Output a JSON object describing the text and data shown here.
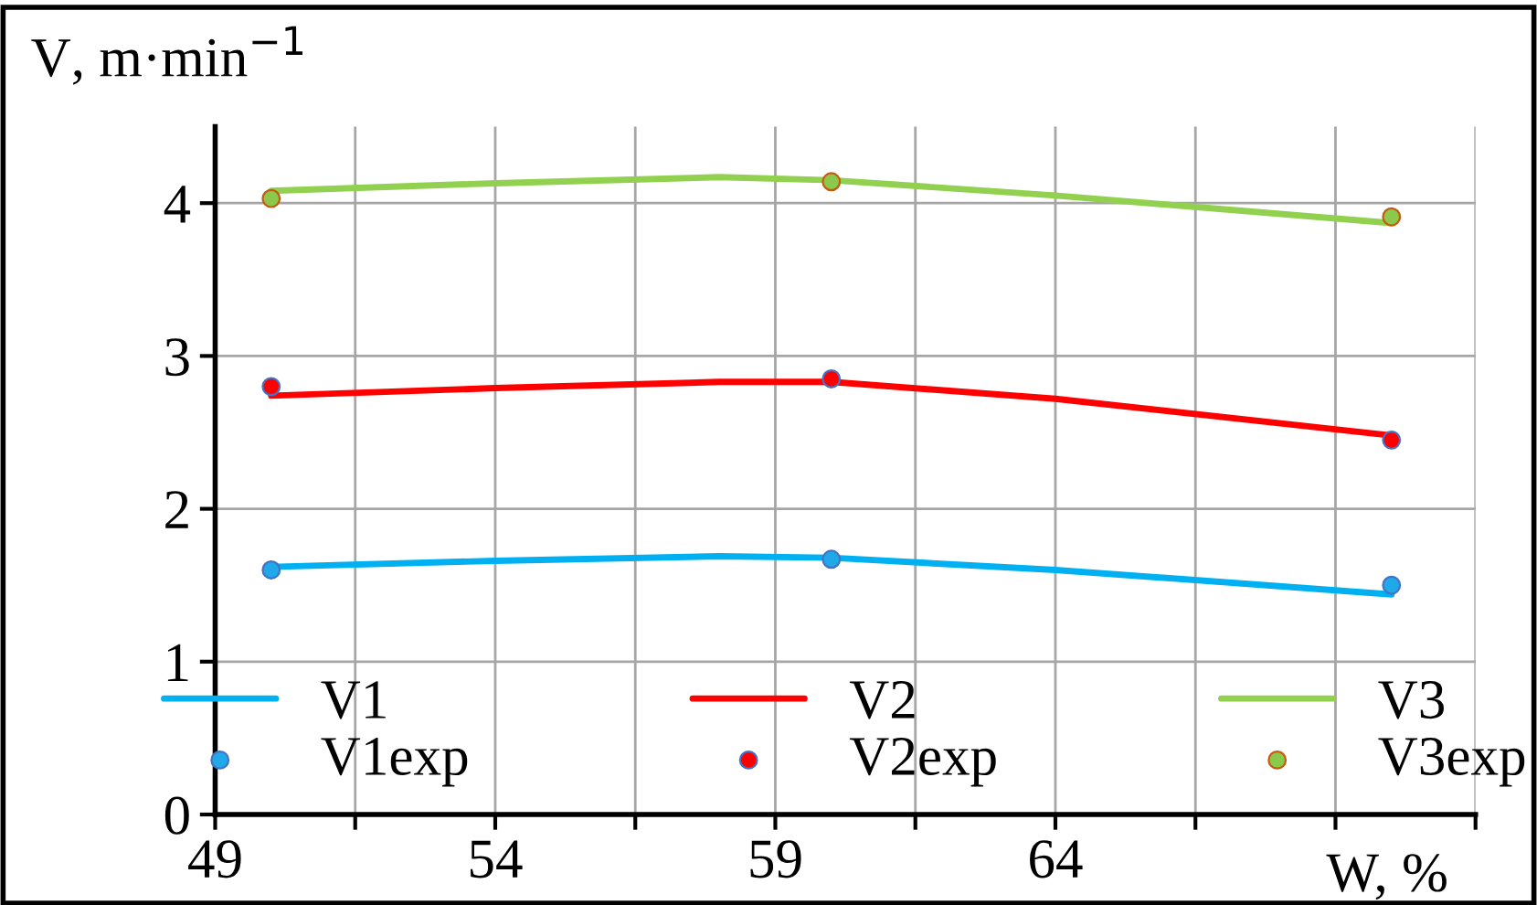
{
  "chart_data": {
    "type": "line",
    "xlabel": "W, %",
    "ylabel": "V, m·min$^{−1}$",
    "xlim": [
      49,
      71.5
    ],
    "ylim": [
      0,
      4.5
    ],
    "xticks": [
      49,
      {
        "value": 51.5,
        "label": null
      },
      54,
      {
        "value": 56.5,
        "label": null
      },
      59,
      {
        "value": 61.5,
        "label": null
      },
      64,
      {
        "value": 66.5,
        "label": null
      },
      {
        "value": 69,
        "label": null
      },
      {
        "value": 71.5,
        "label": null
      }
    ],
    "yticks": [
      0,
      1,
      2,
      3,
      4
    ],
    "grid": true,
    "legend": "bottom",
    "series": [
      {
        "name": "V1",
        "color": "#00b0f0",
        "x": [
          50,
          54,
          58,
          60,
          64,
          70
        ],
        "values": [
          1.62,
          1.66,
          1.69,
          1.68,
          1.6,
          1.44
        ]
      },
      {
        "name": "V2",
        "color": "#ff0000",
        "x": [
          50,
          54,
          58,
          60,
          64,
          70
        ],
        "values": [
          2.74,
          2.79,
          2.83,
          2.83,
          2.72,
          2.48
        ]
      },
      {
        "name": "V3",
        "color": "#92d050",
        "x": [
          50,
          54,
          58,
          60,
          64,
          70
        ],
        "values": [
          4.08,
          4.13,
          4.17,
          4.15,
          4.05,
          3.87
        ]
      },
      {
        "name": "V1exp",
        "type": "scatter",
        "color": "#1fa9e8",
        "x": [
          50,
          60,
          70
        ],
        "values": [
          1.6,
          1.67,
          1.5
        ]
      },
      {
        "name": "V2exp",
        "type": "scatter",
        "color": "#ff0000",
        "x": [
          50,
          60,
          70
        ],
        "values": [
          2.8,
          2.85,
          2.45
        ]
      },
      {
        "name": "V3exp",
        "type": "scatter",
        "color": "#8cc84b",
        "x": [
          50,
          60,
          70
        ],
        "values": [
          4.03,
          4.14,
          3.91
        ]
      }
    ]
  }
}
